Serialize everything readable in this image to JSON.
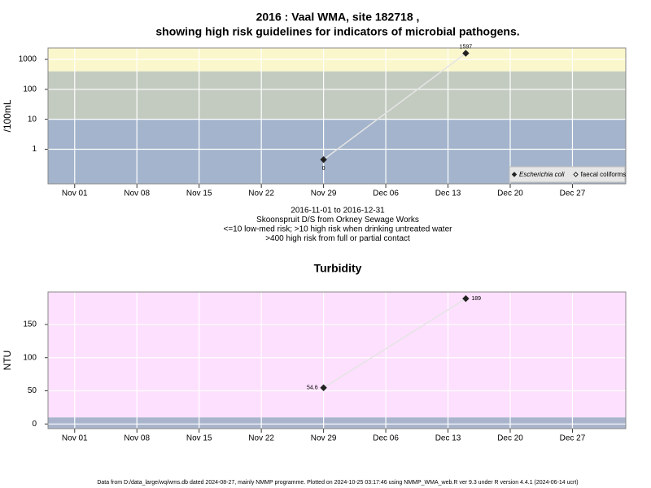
{
  "chart_data": [
    {
      "type": "line",
      "title": [
        "2016 : Vaal WMA, site 182718 ,",
        "showing high risk guidelines for indicators of microbial pathogens."
      ],
      "subtitle": [
        "2016-11-01 to 2016-12-31",
        "Skoonspruit D/S from Orkney Sewage Works",
        "<=10 low-med risk; >10 high risk when drinking untreated water",
        ">400 high risk from full or partial contact"
      ],
      "y_label": "/100mL",
      "log_y": true,
      "grid": true,
      "legend": "bottom right",
      "xlim": [
        "2016-10-29",
        "2017-01-02"
      ],
      "xticks": [
        {
          "value": "2016-11-01",
          "label": "Nov 01"
        },
        {
          "value": "2016-11-08",
          "label": "Nov 08"
        },
        {
          "value": "2016-11-15",
          "label": "Nov 15"
        },
        {
          "value": "2016-11-22",
          "label": "Nov 22"
        },
        {
          "value": "2016-11-29",
          "label": "Nov 29"
        },
        {
          "value": "2016-12-06",
          "label": "Dec 06"
        },
        {
          "value": "2016-12-13",
          "label": "Dec 13"
        },
        {
          "value": "2016-12-20",
          "label": "Dec 20"
        },
        {
          "value": "2016-12-27",
          "label": "Dec 27"
        }
      ],
      "ylim": [
        0.07,
        2400
      ],
      "yticks": [
        1,
        10,
        100,
        1000
      ],
      "bands": [
        {
          "to": 10,
          "color": "#a3b4cc"
        },
        {
          "from": 10,
          "to": 400,
          "color": "#c3cbc0"
        },
        {
          "from": 400,
          "color": "#fbf7cc"
        }
      ],
      "x": [
        "2016-11-29",
        "2016-12-15"
      ],
      "series": [
        {
          "name": "Escherichia coli",
          "color": "#222222",
          "marker": "filled",
          "values": [
            0.45,
            1597
          ],
          "value_labels": [
            "0",
            "1597"
          ]
        },
        {
          "name": "faecal coliforms",
          "color": "#222222",
          "marker": "open",
          "values": [
            null,
            null
          ]
        }
      ]
    },
    {
      "type": "line",
      "title": "Turbidity",
      "y_label": "NTU",
      "log_y": false,
      "grid": true,
      "xlim": [
        "2016-10-29",
        "2017-01-02"
      ],
      "xticks": [
        {
          "value": "2016-11-01",
          "label": "Nov 01"
        },
        {
          "value": "2016-11-08",
          "label": "Nov 08"
        },
        {
          "value": "2016-11-15",
          "label": "Nov 15"
        },
        {
          "value": "2016-11-22",
          "label": "Nov 22"
        },
        {
          "value": "2016-11-29",
          "label": "Nov 29"
        },
        {
          "value": "2016-12-06",
          "label": "Dec 06"
        },
        {
          "value": "2016-12-13",
          "label": "Dec 13"
        },
        {
          "value": "2016-12-20",
          "label": "Dec 20"
        },
        {
          "value": "2016-12-27",
          "label": "Dec 27"
        }
      ],
      "ylim": [
        -7,
        199
      ],
      "yticks": [
        0,
        50,
        100,
        150
      ],
      "bands": [
        {
          "to": 10,
          "color": "#a9b4cc"
        },
        {
          "from": 10,
          "color": "#fde0fd"
        }
      ],
      "x": [
        "2016-11-29",
        "2016-12-15"
      ],
      "series": [
        {
          "color": "#222222",
          "marker": "filled",
          "values": [
            54.6,
            189
          ]
        }
      ]
    }
  ],
  "footer": "Data from D:/data_large/wq/wms.db dated 2024-08-27, mainly NMMP programme. Plotted on 2024-10-25 03:17:46 using NMMP_WMA_web.R ver 9.3 under R version 4.4.1 (2024-06-14 ucrt)"
}
